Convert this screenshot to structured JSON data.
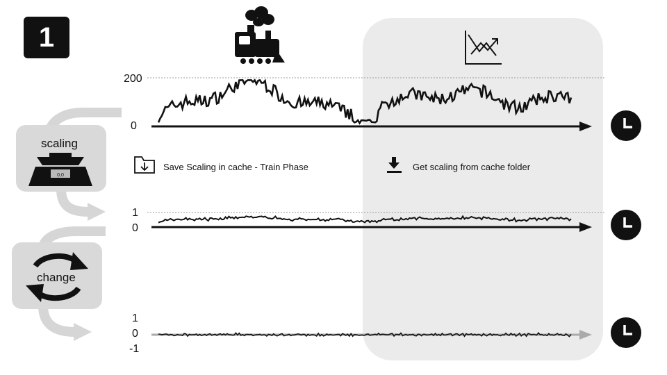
{
  "step": {
    "number": "1"
  },
  "train_icon": "steam-locomotive-icon",
  "predict_icon": "chart-trend-icon",
  "side_boxes": {
    "scaling": {
      "label": "scaling",
      "icon": "scale-icon",
      "scale_readout": "0,0"
    },
    "change": {
      "label": "change",
      "icon": "cycle-arrows-icon"
    }
  },
  "cache": {
    "save_label": "Save Scaling in cache - Train Phase",
    "save_icon": "folder-download-icon",
    "get_label": "Get scaling from cache folder",
    "get_icon": "download-icon"
  },
  "timelines": [
    {
      "ticks": [
        "200",
        "0"
      ],
      "end_icon": "clock-icon"
    },
    {
      "ticks": [
        "1",
        "0"
      ],
      "end_icon": "clock-icon"
    },
    {
      "ticks": [
        "1",
        "0",
        "-1"
      ],
      "end_icon": "clock-icon"
    }
  ],
  "colors": {
    "panel": "#ebebeb",
    "box": "#d9d9d9",
    "ink": "#111111"
  }
}
